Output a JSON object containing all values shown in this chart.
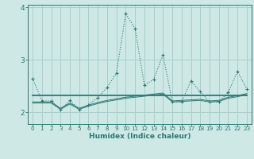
{
  "xlabel": "Humidex (Indice chaleur)",
  "background_color": "#cde8e5",
  "grid_color": "#aacfcc",
  "line_color": "#2d7872",
  "x": [
    0,
    1,
    2,
    3,
    4,
    5,
    6,
    7,
    8,
    9,
    10,
    11,
    12,
    13,
    14,
    15,
    16,
    17,
    18,
    19,
    20,
    21,
    22,
    23
  ],
  "series1": [
    2.65,
    2.22,
    2.22,
    2.05,
    2.23,
    2.05,
    2.15,
    2.28,
    2.48,
    2.75,
    3.88,
    3.6,
    2.52,
    2.63,
    3.1,
    2.2,
    2.2,
    2.6,
    2.4,
    2.2,
    2.2,
    2.38,
    2.78,
    2.45
  ],
  "series2": [
    2.32,
    2.32,
    2.32,
    2.32,
    2.32,
    2.32,
    2.32,
    2.32,
    2.32,
    2.32,
    2.32,
    2.32,
    2.32,
    2.32,
    2.32,
    2.32,
    2.32,
    2.32,
    2.32,
    2.32,
    2.32,
    2.32,
    2.32,
    2.32
  ],
  "series3": [
    2.2,
    2.2,
    2.2,
    2.08,
    2.18,
    2.08,
    2.14,
    2.19,
    2.23,
    2.26,
    2.29,
    2.31,
    2.33,
    2.35,
    2.37,
    2.22,
    2.23,
    2.24,
    2.25,
    2.22,
    2.23,
    2.29,
    2.32,
    2.36
  ],
  "series4": [
    2.18,
    2.18,
    2.18,
    2.06,
    2.16,
    2.06,
    2.12,
    2.17,
    2.21,
    2.24,
    2.27,
    2.29,
    2.31,
    2.33,
    2.35,
    2.2,
    2.21,
    2.22,
    2.23,
    2.2,
    2.21,
    2.27,
    2.3,
    2.34
  ],
  "ylim": [
    1.78,
    4.05
  ],
  "yticks": [
    2,
    3,
    4
  ],
  "xlim": [
    -0.5,
    23.5
  ],
  "xtick_fontsize": 5.2,
  "ytick_fontsize": 6.5,
  "xlabel_fontsize": 6.5
}
